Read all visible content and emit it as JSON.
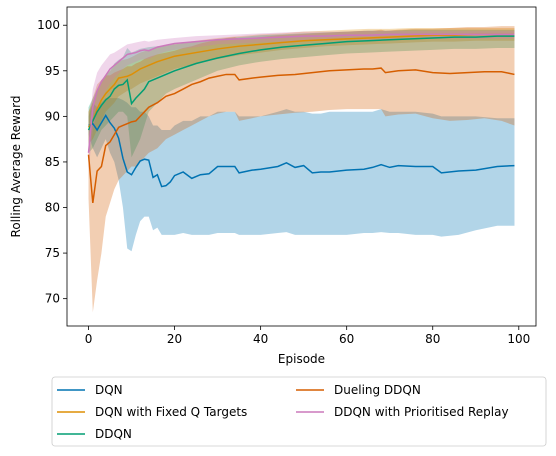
{
  "chart_data": {
    "type": "line",
    "xlabel": "Episode",
    "ylabel": "Rolling Average Reward",
    "xlim": [
      -5,
      104
    ],
    "ylim": [
      67,
      102
    ],
    "xticks": [
      0,
      20,
      40,
      60,
      80,
      100
    ],
    "yticks": [
      70,
      75,
      80,
      85,
      90,
      95,
      100
    ],
    "grid": false,
    "legend_position": "bottom-center-outside",
    "series": [
      {
        "name": "DQN",
        "color": "#0173b2",
        "band_color": "#0173b2",
        "x": [
          0,
          1,
          2,
          3,
          4,
          5,
          6,
          7,
          8,
          9,
          10,
          11,
          12,
          13,
          14,
          15,
          16,
          17,
          18,
          19,
          20,
          22,
          24,
          26,
          28,
          30,
          32,
          34,
          35,
          38,
          40,
          44,
          46,
          48,
          50,
          52,
          54,
          56,
          60,
          64,
          66,
          68,
          70,
          72,
          76,
          80,
          82,
          86,
          90,
          95,
          99
        ],
        "y": [
          89.0,
          89.2,
          88.5,
          89.3,
          90.1,
          89.3,
          88.7,
          87.6,
          85.4,
          83.9,
          83.6,
          84.4,
          85.1,
          85.3,
          85.2,
          83.3,
          83.6,
          82.3,
          82.4,
          82.8,
          83.5,
          83.9,
          83.2,
          83.6,
          83.7,
          84.5,
          84.5,
          84.5,
          83.8,
          84.1,
          84.2,
          84.5,
          84.9,
          84.4,
          84.6,
          83.8,
          83.9,
          83.9,
          84.1,
          84.2,
          84.4,
          84.7,
          84.4,
          84.6,
          84.5,
          84.5,
          83.8,
          84.0,
          84.1,
          84.5,
          84.6
        ],
        "lower": [
          88.0,
          86.5,
          85.5,
          86.5,
          87.5,
          86.0,
          85.0,
          83.0,
          80.0,
          75.5,
          75.2,
          77.0,
          78.5,
          79.0,
          79.0,
          77.5,
          77.8,
          77.0,
          77.0,
          77.0,
          77.0,
          77.2,
          77.0,
          77.0,
          77.0,
          77.2,
          77.2,
          77.2,
          77.0,
          77.0,
          77.0,
          77.2,
          77.3,
          77.0,
          77.0,
          77.0,
          77.0,
          77.0,
          77.0,
          77.2,
          77.2,
          77.3,
          77.2,
          77.2,
          77.0,
          77.0,
          76.8,
          77.0,
          77.5,
          78.0,
          78.0
        ],
        "upper": [
          90.0,
          91.5,
          91.0,
          91.5,
          92.0,
          92.0,
          92.0,
          92.0,
          91.8,
          91.5,
          91.0,
          91.0,
          90.5,
          90.5,
          90.0,
          89.0,
          89.0,
          88.5,
          88.5,
          88.5,
          89.0,
          89.5,
          89.5,
          90.0,
          90.0,
          90.5,
          90.5,
          90.5,
          90.0,
          90.0,
          90.0,
          90.5,
          90.8,
          90.5,
          90.5,
          90.3,
          90.3,
          90.5,
          90.5,
          90.5,
          90.5,
          90.8,
          90.5,
          90.5,
          90.5,
          90.3,
          90.0,
          90.0,
          90.0,
          89.8,
          89.8
        ]
      },
      {
        "name": "DQN with Fixed Q Targets",
        "color": "#de8f05",
        "band_color": "#de8f05",
        "x": [
          0,
          1,
          2,
          3,
          4,
          5,
          6,
          7,
          8,
          9,
          10,
          12,
          14,
          16,
          18,
          20,
          25,
          30,
          35,
          40,
          45,
          50,
          55,
          60,
          65,
          70,
          75,
          80,
          85,
          90,
          95,
          99
        ],
        "y": [
          88.8,
          89.5,
          90.8,
          91.8,
          92.5,
          93.0,
          93.5,
          94.2,
          94.3,
          94.4,
          94.6,
          95.2,
          95.6,
          96.0,
          96.3,
          96.6,
          97.0,
          97.4,
          97.7,
          97.9,
          98.1,
          98.3,
          98.4,
          98.5,
          98.6,
          98.7,
          98.8,
          98.9,
          98.9,
          99.0,
          99.0,
          99.0
        ],
        "lower": [
          87.0,
          87.5,
          88.5,
          89.5,
          90.5,
          91.0,
          91.5,
          92.2,
          92.5,
          92.8,
          93.0,
          93.6,
          94.0,
          94.4,
          94.8,
          95.2,
          95.8,
          96.3,
          96.7,
          97.0,
          97.3,
          97.5,
          97.7,
          97.8,
          97.9,
          98.0,
          98.1,
          98.2,
          98.2,
          98.3,
          98.3,
          98.3
        ],
        "upper": [
          90.5,
          91.5,
          93.0,
          94.0,
          94.5,
          95.0,
          95.5,
          96.0,
          96.2,
          96.3,
          96.5,
          97.0,
          97.3,
          97.6,
          97.8,
          98.0,
          98.3,
          98.6,
          98.8,
          99.0,
          99.1,
          99.3,
          99.4,
          99.5,
          99.6,
          99.6,
          99.7,
          99.7,
          99.7,
          99.7,
          99.7,
          99.7
        ]
      },
      {
        "name": "DDQN",
        "color": "#029e73",
        "band_color": "#029e73",
        "x": [
          0,
          1,
          2,
          3,
          4,
          5,
          6,
          7,
          8,
          9,
          10,
          11,
          12,
          13,
          14,
          16,
          18,
          20,
          25,
          30,
          35,
          40,
          45,
          50,
          55,
          60,
          65,
          70,
          75,
          80,
          85,
          90,
          95,
          99
        ],
        "y": [
          88.5,
          89.5,
          90.5,
          91.2,
          91.8,
          92.2,
          93.0,
          93.4,
          93.5,
          94.0,
          91.4,
          92.0,
          92.5,
          93.0,
          93.8,
          94.2,
          94.6,
          95.0,
          95.8,
          96.4,
          96.9,
          97.3,
          97.6,
          97.8,
          98.0,
          98.2,
          98.3,
          98.4,
          98.5,
          98.6,
          98.7,
          98.7,
          98.8,
          98.8
        ],
        "lower": [
          86.0,
          86.5,
          87.5,
          88.5,
          89.0,
          89.5,
          90.0,
          90.5,
          90.5,
          90.0,
          85.5,
          86.5,
          87.5,
          89.0,
          90.5,
          91.5,
          92.5,
          93.0,
          94.0,
          95.0,
          95.6,
          96.0,
          96.3,
          96.5,
          96.7,
          96.9,
          97.0,
          97.1,
          97.2,
          97.3,
          97.4,
          97.4,
          97.5,
          97.5
        ],
        "upper": [
          91.0,
          92.0,
          93.0,
          93.8,
          94.5,
          95.0,
          95.8,
          96.2,
          96.5,
          97.5,
          97.0,
          97.2,
          97.4,
          97.5,
          97.6,
          97.7,
          97.8,
          97.9,
          98.2,
          98.5,
          98.7,
          98.9,
          99.0,
          99.1,
          99.2,
          99.3,
          99.4,
          99.4,
          99.5,
          99.5,
          99.5,
          99.5,
          99.5,
          99.5
        ]
      },
      {
        "name": "Dueling DDQN",
        "color": "#d55e00",
        "band_color": "#d55e00",
        "x": [
          0,
          1,
          2,
          3,
          4,
          5,
          6,
          7,
          8,
          9,
          10,
          11,
          12,
          13,
          14,
          16,
          18,
          20,
          22,
          24,
          26,
          28,
          30,
          32,
          34,
          35,
          38,
          40,
          44,
          48,
          52,
          56,
          60,
          64,
          66,
          68,
          69,
          72,
          76,
          80,
          84,
          88,
          92,
          96,
          99
        ],
        "y": [
          85.8,
          80.5,
          84.0,
          84.5,
          86.8,
          87.2,
          88.0,
          88.8,
          89.0,
          89.2,
          89.4,
          89.5,
          90.0,
          90.5,
          91.0,
          91.5,
          92.2,
          92.5,
          93.0,
          93.5,
          93.8,
          94.2,
          94.4,
          94.6,
          94.6,
          94.0,
          94.2,
          94.3,
          94.5,
          94.6,
          94.8,
          95.0,
          95.1,
          95.2,
          95.2,
          95.3,
          94.8,
          95.0,
          95.1,
          94.8,
          94.7,
          94.8,
          94.9,
          94.9,
          94.6
        ],
        "lower": [
          81.0,
          68.5,
          72.0,
          75.0,
          79.0,
          80.5,
          82.0,
          83.0,
          83.5,
          84.0,
          84.5,
          84.5,
          85.0,
          85.5,
          86.0,
          86.5,
          87.5,
          88.0,
          88.5,
          89.0,
          89.5,
          90.0,
          90.3,
          90.5,
          90.5,
          89.5,
          89.8,
          90.0,
          90.2,
          90.4,
          90.5,
          90.7,
          90.8,
          90.8,
          90.8,
          90.8,
          90.0,
          90.2,
          90.3,
          89.8,
          89.5,
          89.6,
          89.8,
          89.5,
          89.0
        ],
        "upper": [
          90.5,
          92.0,
          93.5,
          94.0,
          94.5,
          94.5,
          94.8,
          95.0,
          95.2,
          95.5,
          95.5,
          95.8,
          96.0,
          96.3,
          96.5,
          96.8,
          97.0,
          97.2,
          97.5,
          97.7,
          98.0,
          98.2,
          98.4,
          98.6,
          98.7,
          98.5,
          98.6,
          98.7,
          98.9,
          99.0,
          99.1,
          99.2,
          99.3,
          99.4,
          99.4,
          99.5,
          99.4,
          99.5,
          99.6,
          99.6,
          99.7,
          99.8,
          99.8,
          99.9,
          99.9
        ]
      },
      {
        "name": "DDQN with Prioritised Replay",
        "color": "#cc78bc",
        "band_color": "#cc78bc",
        "x": [
          0,
          1,
          2,
          3,
          4,
          5,
          6,
          7,
          8,
          9,
          10,
          11,
          12,
          13,
          14,
          16,
          18,
          20,
          25,
          30,
          35,
          40,
          45,
          50,
          55,
          60,
          65,
          70,
          75,
          80,
          85,
          90,
          95,
          99
        ],
        "y": [
          86.0,
          91.0,
          92.8,
          93.8,
          94.5,
          95.2,
          95.6,
          96.0,
          96.4,
          96.8,
          96.9,
          97.0,
          97.2,
          97.3,
          97.2,
          97.6,
          97.8,
          98.0,
          98.2,
          98.4,
          98.5,
          98.6,
          98.7,
          98.8,
          98.8,
          98.9,
          98.9,
          99.0,
          99.0,
          99.0,
          99.0,
          99.0,
          99.0,
          99.0
        ],
        "lower": [
          84.0,
          88.5,
          90.5,
          91.8,
          92.8,
          93.6,
          94.2,
          94.7,
          95.2,
          95.6,
          95.8,
          96.0,
          96.2,
          96.3,
          96.3,
          96.8,
          97.1,
          97.3,
          97.6,
          97.9,
          98.0,
          98.1,
          98.2,
          98.3,
          98.3,
          98.4,
          98.4,
          98.5,
          98.5,
          98.5,
          98.5,
          98.5,
          98.5,
          98.5
        ],
        "upper": [
          88.0,
          93.0,
          94.8,
          95.6,
          96.2,
          96.8,
          97.0,
          97.3,
          97.6,
          97.9,
          98.0,
          98.1,
          98.2,
          98.3,
          98.2,
          98.4,
          98.5,
          98.6,
          98.8,
          98.9,
          99.0,
          99.1,
          99.2,
          99.3,
          99.3,
          99.3,
          99.4,
          99.4,
          99.4,
          99.4,
          99.4,
          99.4,
          99.4,
          99.4
        ]
      }
    ],
    "legend": {
      "columns": [
        [
          "DQN",
          "DQN with Fixed Q Targets",
          "DDQN"
        ],
        [
          "Dueling DDQN",
          "DDQN with Prioritised Replay"
        ]
      ]
    }
  }
}
